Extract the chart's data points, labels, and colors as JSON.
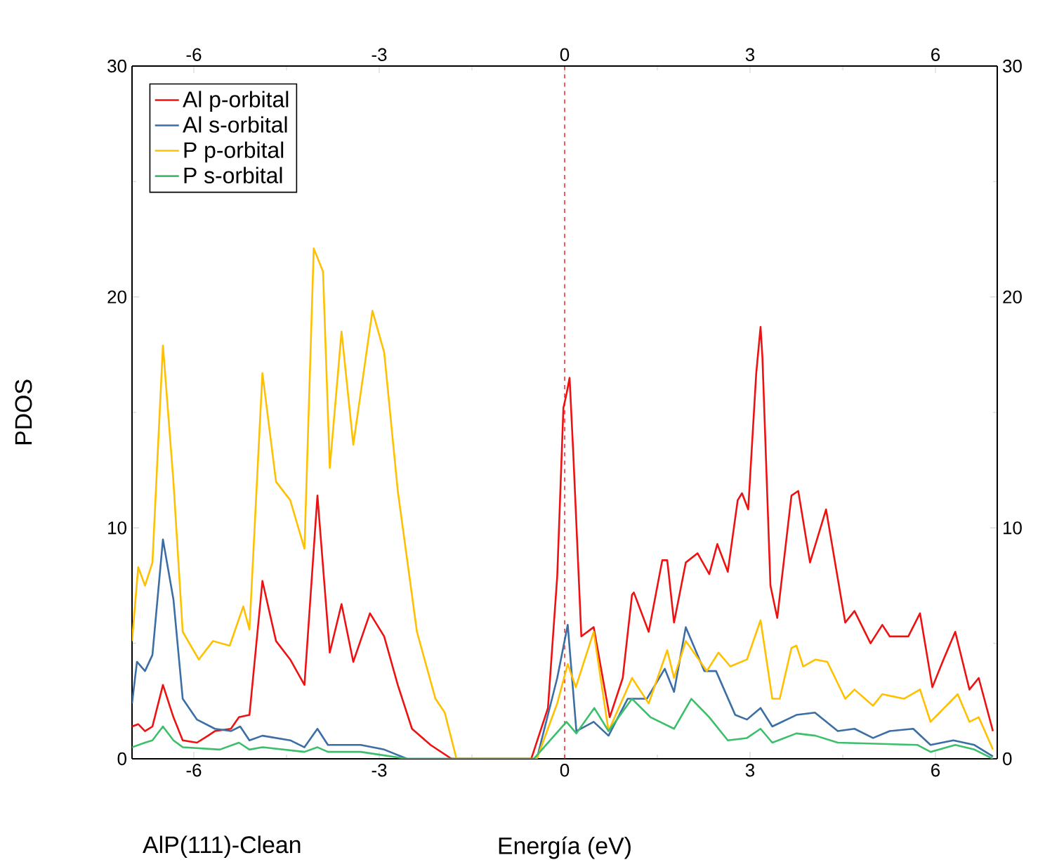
{
  "chart_data": {
    "type": "line",
    "xlabel": "Energía (eV)",
    "ylabel": "PDOS",
    "annotations": [
      "AlP(111)-Clean"
    ],
    "xlim": [
      -7,
      7
    ],
    "xticks": [
      -6,
      -3,
      0,
      3,
      6
    ],
    "ylim": [
      0,
      30
    ],
    "yticks": [
      0,
      10,
      20,
      30
    ],
    "x2lim": [
      -7,
      7
    ],
    "x2ticks": [
      -6,
      -3,
      0,
      3,
      6
    ],
    "y2lim": [
      0,
      30
    ],
    "y2ticks": [
      0,
      10,
      20,
      30
    ],
    "legend": "top left",
    "marker": "none",
    "line_style": "solid",
    "grid": false,
    "ref_lines": [
      {
        "axis": "x",
        "value": 0,
        "color": "#e8161b",
        "line_style": "dashed"
      }
    ],
    "series": [
      {
        "name": "Al p-orbital",
        "color": "#ee1111",
        "x": [
          -7.0,
          -6.9,
          -6.79,
          -6.67,
          -6.5,
          -6.33,
          -6.18,
          -5.95,
          -5.77,
          -5.66,
          -5.4,
          -5.27,
          -5.1,
          -4.89,
          -4.67,
          -4.44,
          -4.21,
          -4.0,
          -3.8,
          -3.61,
          -3.42,
          -3.15,
          -2.92,
          -2.7,
          -2.47,
          -2.17,
          -1.83,
          -0.54,
          -0.27,
          -0.12,
          -0.02,
          0.03,
          0.08,
          0.14,
          0.27,
          0.47,
          0.73,
          0.94,
          1.09,
          1.12,
          1.36,
          1.58,
          1.66,
          1.77,
          1.96,
          2.15,
          2.34,
          2.47,
          2.64,
          2.8,
          2.87,
          2.97,
          3.1,
          3.17,
          3.2,
          3.33,
          3.44,
          3.67,
          3.78,
          3.97,
          4.23,
          4.54,
          4.69,
          4.95,
          5.14,
          5.26,
          5.56,
          5.75,
          5.95,
          6.13,
          6.32,
          6.55,
          6.7,
          6.93
        ],
        "values": [
          1.4,
          1.5,
          1.2,
          1.4,
          3.2,
          1.8,
          0.8,
          0.7,
          1.0,
          1.2,
          1.3,
          1.8,
          1.9,
          7.7,
          5.1,
          4.3,
          3.2,
          11.4,
          4.6,
          6.7,
          4.2,
          6.3,
          5.3,
          3.2,
          1.3,
          0.6,
          0,
          0,
          2.2,
          7.9,
          15.2,
          15.8,
          16.5,
          13.2,
          5.3,
          5.7,
          1.8,
          3.5,
          7.1,
          7.2,
          5.5,
          8.6,
          8.6,
          5.9,
          8.5,
          8.9,
          8.0,
          9.3,
          8.1,
          11.2,
          11.5,
          10.8,
          16.7,
          18.7,
          17.4,
          7.5,
          6.1,
          11.4,
          11.6,
          8.5,
          10.8,
          5.9,
          6.4,
          5.0,
          5.8,
          5.3,
          5.3,
          6.3,
          3.1,
          4.3,
          5.5,
          3.0,
          3.5,
          1.2
        ]
      },
      {
        "name": "Al s-orbital",
        "color": "#3a6ea5",
        "x": [
          -7.0,
          -6.92,
          -6.79,
          -6.67,
          -6.5,
          -6.33,
          -6.18,
          -5.95,
          -5.66,
          -5.4,
          -5.25,
          -5.1,
          -4.89,
          -4.44,
          -4.21,
          -4.0,
          -3.83,
          -3.3,
          -2.92,
          -2.55,
          -0.45,
          -0.12,
          0.05,
          0.19,
          0.47,
          0.71,
          1.02,
          1.33,
          1.62,
          1.77,
          1.96,
          2.26,
          2.45,
          2.76,
          2.95,
          3.17,
          3.36,
          3.75,
          4.05,
          4.42,
          4.69,
          4.99,
          5.26,
          5.64,
          5.92,
          6.29,
          6.63,
          6.93
        ],
        "values": [
          2.4,
          4.2,
          3.8,
          4.5,
          9.5,
          6.9,
          2.6,
          1.7,
          1.3,
          1.2,
          1.4,
          0.8,
          1.0,
          0.8,
          0.5,
          1.3,
          0.6,
          0.6,
          0.4,
          0,
          0,
          3.5,
          5.8,
          1.2,
          1.6,
          1.0,
          2.6,
          2.6,
          3.9,
          2.9,
          5.7,
          3.8,
          3.8,
          1.9,
          1.7,
          2.2,
          1.4,
          1.9,
          2.0,
          1.2,
          1.3,
          0.9,
          1.2,
          1.3,
          0.6,
          0.8,
          0.6,
          0.1
        ]
      },
      {
        "name": "P p-orbital",
        "color": "#ffc000",
        "x": [
          -7.0,
          -6.9,
          -6.79,
          -6.67,
          -6.5,
          -6.33,
          -6.18,
          -5.92,
          -5.69,
          -5.42,
          -5.2,
          -5.1,
          -4.89,
          -4.67,
          -4.44,
          -4.21,
          -4.06,
          -3.91,
          -3.8,
          -3.61,
          -3.42,
          -3.11,
          -2.92,
          -2.7,
          -2.39,
          -2.09,
          -1.94,
          -1.75,
          -0.45,
          -0.12,
          0.05,
          0.18,
          0.47,
          0.71,
          1.09,
          1.36,
          1.66,
          1.77,
          1.96,
          2.3,
          2.49,
          2.68,
          2.95,
          3.17,
          3.36,
          3.48,
          3.67,
          3.75,
          3.86,
          4.06,
          4.25,
          4.54,
          4.69,
          4.99,
          5.14,
          5.49,
          5.75,
          5.92,
          6.36,
          6.55,
          6.7,
          6.93
        ],
        "values": [
          5.1,
          8.3,
          7.5,
          8.5,
          17.9,
          12.0,
          5.5,
          4.3,
          5.1,
          4.9,
          6.6,
          5.6,
          16.7,
          12.0,
          11.2,
          9.1,
          22.1,
          21.1,
          12.6,
          18.5,
          13.6,
          19.4,
          17.6,
          11.6,
          5.5,
          2.6,
          2.0,
          0,
          0,
          2.4,
          4.1,
          3.1,
          5.5,
          1.2,
          3.5,
          2.4,
          4.7,
          3.5,
          5.1,
          3.8,
          4.6,
          4.0,
          4.3,
          6.0,
          2.6,
          2.6,
          4.8,
          4.9,
          4.0,
          4.3,
          4.2,
          2.6,
          3.0,
          2.3,
          2.8,
          2.6,
          3.0,
          1.6,
          2.8,
          1.6,
          1.8,
          0.4
        ]
      },
      {
        "name": "P s-orbital",
        "color": "#3cbf6a",
        "x": [
          -7.0,
          -6.79,
          -6.67,
          -6.5,
          -6.33,
          -6.18,
          -5.58,
          -5.27,
          -5.1,
          -4.89,
          -4.21,
          -4.0,
          -3.83,
          -3.3,
          -2.55,
          -0.5,
          0.03,
          0.19,
          0.48,
          0.71,
          1.09,
          1.39,
          1.77,
          2.05,
          2.34,
          2.64,
          2.95,
          3.17,
          3.36,
          3.75,
          4.06,
          4.42,
          5.71,
          5.92,
          6.32,
          6.63,
          6.93
        ],
        "values": [
          0.5,
          0.7,
          0.8,
          1.4,
          0.8,
          0.5,
          0.4,
          0.7,
          0.4,
          0.5,
          0.3,
          0.5,
          0.3,
          0.3,
          0,
          0,
          1.6,
          1.1,
          2.2,
          1.2,
          2.6,
          1.8,
          1.3,
          2.6,
          1.8,
          0.8,
          0.9,
          1.3,
          0.7,
          1.1,
          1.0,
          0.7,
          0.6,
          0.3,
          0.6,
          0.4,
          0
        ]
      }
    ]
  }
}
